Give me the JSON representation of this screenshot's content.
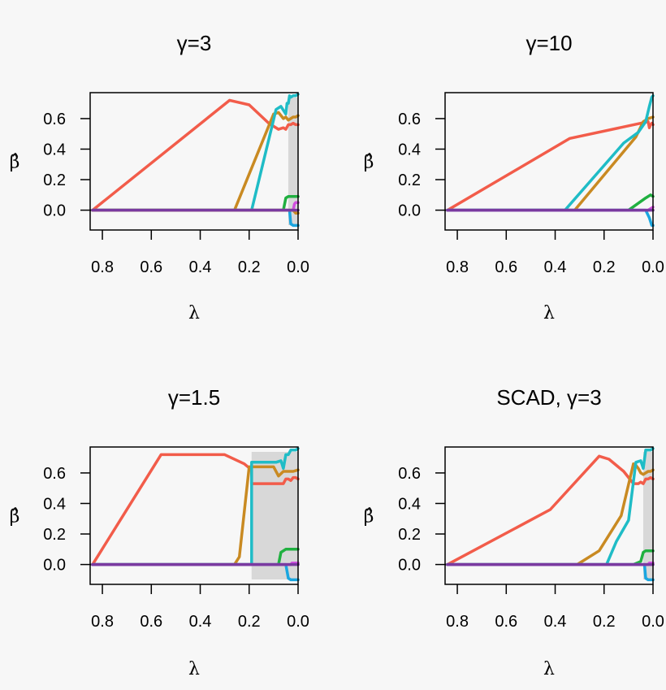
{
  "figure_background": "#f7f7f7",
  "colors": {
    "s1": "#f25c4a",
    "s2": "#c98a22",
    "s3": "#1fbcc6",
    "s4": "#20b040",
    "s5": "#1aa6e0",
    "s6": "#d24fe0",
    "s7": "#7a3aa0",
    "shade": "#d8d8d8",
    "zero_line": "#000000"
  },
  "chart_data": [
    {
      "type": "line",
      "title": "γ=3",
      "xlabel": "λ",
      "ylabel": "β̂",
      "xlim": [
        0.85,
        0.0
      ],
      "ylim": [
        -0.13,
        0.77
      ],
      "xticks": [
        "0.8",
        "0.6",
        "0.4",
        "0.2",
        "0.0"
      ],
      "yticks": [
        "0.0",
        "0.2",
        "0.4",
        "0.6"
      ],
      "grid": false,
      "shaded_region": [
        0.04,
        0.0
      ],
      "series": [
        {
          "color_key": "s1",
          "x": [
            0.84,
            0.28,
            0.2,
            0.12,
            0.08,
            0.06,
            0.05,
            0.04,
            0.03,
            0.02,
            0.01,
            0.0
          ],
          "y": [
            0.0,
            0.72,
            0.69,
            0.57,
            0.53,
            0.54,
            0.53,
            0.56,
            0.56,
            0.57,
            0.56,
            0.56
          ]
        },
        {
          "color_key": "s2",
          "x": [
            0.84,
            0.26,
            0.1,
            0.08,
            0.06,
            0.05,
            0.04,
            0.03,
            0.02,
            0.01,
            0.0
          ],
          "y": [
            0.0,
            0.0,
            0.63,
            0.64,
            0.6,
            0.61,
            0.59,
            0.6,
            0.61,
            0.61,
            0.62
          ]
        },
        {
          "color_key": "s3",
          "x": [
            0.84,
            0.19,
            0.09,
            0.07,
            0.05,
            0.045,
            0.04,
            0.035,
            0.03,
            0.02,
            0.01,
            0.0
          ],
          "y": [
            0.0,
            0.0,
            0.66,
            0.68,
            0.63,
            0.7,
            0.7,
            0.75,
            0.74,
            0.75,
            0.75,
            0.76
          ]
        },
        {
          "color_key": "s4",
          "x": [
            0.84,
            0.06,
            0.05,
            0.04,
            0.03,
            0.02,
            0.01,
            0.0
          ],
          "y": [
            0.0,
            0.0,
            0.08,
            0.09,
            0.09,
            0.09,
            0.09,
            0.09
          ]
        },
        {
          "color_key": "s5",
          "x": [
            0.84,
            0.035,
            0.03,
            0.02,
            0.01,
            0.0
          ],
          "y": [
            0.0,
            0.0,
            -0.09,
            -0.1,
            -0.1,
            -0.1
          ]
        },
        {
          "color_key": "s6",
          "x": [
            0.84,
            0.02,
            0.015,
            0.01,
            0.0
          ],
          "y": [
            0.0,
            0.0,
            0.04,
            0.05,
            0.05
          ]
        },
        {
          "color_key": "s2",
          "x": [
            0.84,
            0.02,
            0.01,
            0.0
          ],
          "y": [
            0.0,
            0.0,
            -0.02,
            -0.02
          ]
        },
        {
          "color_key": "s7",
          "x": [
            0.84,
            0.0
          ],
          "y": [
            0.0,
            0.0
          ]
        }
      ]
    },
    {
      "type": "line",
      "title": "γ=10",
      "xlabel": "λ",
      "ylabel": "β̂",
      "xlim": [
        0.85,
        0.0
      ],
      "ylim": [
        -0.13,
        0.77
      ],
      "xticks": [
        "0.8",
        "0.6",
        "0.4",
        "0.2",
        "0.0"
      ],
      "yticks": [
        "0.0",
        "0.2",
        "0.4",
        "0.6"
      ],
      "grid": false,
      "shaded_region": null,
      "series": [
        {
          "color_key": "s1",
          "x": [
            0.84,
            0.34,
            0.02,
            0.015,
            0.01,
            0.005,
            0.0
          ],
          "y": [
            0.0,
            0.47,
            0.58,
            0.54,
            0.56,
            0.57,
            0.56
          ]
        },
        {
          "color_key": "s2",
          "x": [
            0.84,
            0.32,
            0.07,
            0.04,
            0.02,
            0.0
          ],
          "y": [
            0.0,
            0.0,
            0.48,
            0.58,
            0.6,
            0.61
          ]
        },
        {
          "color_key": "s3",
          "x": [
            0.84,
            0.36,
            0.12,
            0.06,
            0.03,
            0.015,
            0.005,
            0.0
          ],
          "y": [
            0.0,
            0.0,
            0.44,
            0.51,
            0.58,
            0.68,
            0.74,
            0.75
          ]
        },
        {
          "color_key": "s4",
          "x": [
            0.84,
            0.1,
            0.03,
            0.01,
            0.0
          ],
          "y": [
            0.0,
            0.0,
            0.08,
            0.1,
            0.09
          ]
        },
        {
          "color_key": "s5",
          "x": [
            0.84,
            0.03,
            0.015,
            0.005,
            0.0
          ],
          "y": [
            0.0,
            0.0,
            -0.05,
            -0.1,
            -0.1
          ]
        },
        {
          "color_key": "s6",
          "x": [
            0.84,
            0.02,
            0.01,
            0.0
          ],
          "y": [
            0.0,
            0.0,
            0.01,
            0.02
          ]
        },
        {
          "color_key": "s7",
          "x": [
            0.84,
            0.0
          ],
          "y": [
            0.0,
            0.0
          ]
        }
      ]
    },
    {
      "type": "line",
      "title": "γ=1.5",
      "xlabel": "λ",
      "ylabel": "β̂",
      "xlim": [
        0.85,
        0.0
      ],
      "ylim": [
        -0.13,
        0.77
      ],
      "xticks": [
        "0.8",
        "0.6",
        "0.4",
        "0.2",
        "0.0"
      ],
      "yticks": [
        "0.0",
        "0.2",
        "0.4",
        "0.6"
      ],
      "grid": false,
      "shaded_region": [
        0.19,
        0.0
      ],
      "series": [
        {
          "color_key": "s1",
          "x": [
            0.84,
            0.56,
            0.3,
            0.22,
            0.19,
            0.19,
            0.1,
            0.06,
            0.05,
            0.04,
            0.03,
            0.02,
            0.01,
            0.0
          ],
          "y": [
            0.0,
            0.72,
            0.72,
            0.66,
            0.62,
            0.53,
            0.53,
            0.53,
            0.56,
            0.56,
            0.55,
            0.57,
            0.57,
            0.56
          ]
        },
        {
          "color_key": "s2",
          "x": [
            0.84,
            0.26,
            0.24,
            0.2,
            0.1,
            0.08,
            0.06,
            0.04,
            0.02,
            0.0
          ],
          "y": [
            0.0,
            0.0,
            0.05,
            0.64,
            0.64,
            0.58,
            0.61,
            0.61,
            0.61,
            0.62
          ]
        },
        {
          "color_key": "s3",
          "x": [
            0.84,
            0.19,
            0.19,
            0.09,
            0.07,
            0.06,
            0.05,
            0.04,
            0.03,
            0.02,
            0.01,
            0.0
          ],
          "y": [
            0.0,
            0.0,
            0.67,
            0.67,
            0.68,
            0.63,
            0.72,
            0.72,
            0.75,
            0.75,
            0.75,
            0.76
          ]
        },
        {
          "color_key": "s4",
          "x": [
            0.84,
            0.08,
            0.07,
            0.05,
            0.02,
            0.0
          ],
          "y": [
            0.0,
            0.0,
            0.08,
            0.1,
            0.1,
            0.1
          ]
        },
        {
          "color_key": "s5",
          "x": [
            0.84,
            0.05,
            0.04,
            0.03,
            0.01,
            0.0
          ],
          "y": [
            0.0,
            0.0,
            -0.09,
            -0.1,
            -0.1,
            -0.1
          ]
        },
        {
          "color_key": "s6",
          "x": [
            0.84,
            0.03,
            0.025,
            0.0
          ],
          "y": [
            0.0,
            0.0,
            0.01,
            0.01
          ]
        },
        {
          "color_key": "s7",
          "x": [
            0.84,
            0.0
          ],
          "y": [
            0.0,
            0.0
          ]
        }
      ]
    },
    {
      "type": "line",
      "title": "SCAD, γ=3",
      "xlabel": "λ",
      "ylabel": "β̂",
      "xlim": [
        0.85,
        0.0
      ],
      "ylim": [
        -0.13,
        0.77
      ],
      "xticks": [
        "0.8",
        "0.6",
        "0.4",
        "0.2",
        "0.0"
      ],
      "yticks": [
        "0.0",
        "0.2",
        "0.4",
        "0.6"
      ],
      "grid": false,
      "shaded_region": [
        0.04,
        0.0
      ],
      "series": [
        {
          "color_key": "s1",
          "x": [
            0.84,
            0.42,
            0.22,
            0.18,
            0.12,
            0.08,
            0.06,
            0.05,
            0.04,
            0.03,
            0.02,
            0.01,
            0.0
          ],
          "y": [
            0.0,
            0.36,
            0.71,
            0.69,
            0.61,
            0.53,
            0.53,
            0.54,
            0.53,
            0.56,
            0.56,
            0.57,
            0.56
          ]
        },
        {
          "color_key": "s2",
          "x": [
            0.84,
            0.31,
            0.22,
            0.13,
            0.08,
            0.07,
            0.06,
            0.05,
            0.04,
            0.03,
            0.02,
            0.01,
            0.0
          ],
          "y": [
            0.0,
            0.0,
            0.09,
            0.32,
            0.66,
            0.65,
            0.63,
            0.6,
            0.59,
            0.6,
            0.61,
            0.61,
            0.62
          ]
        },
        {
          "color_key": "s3",
          "x": [
            0.84,
            0.19,
            0.15,
            0.1,
            0.07,
            0.05,
            0.04,
            0.03,
            0.02,
            0.01,
            0.0
          ],
          "y": [
            0.0,
            0.0,
            0.15,
            0.29,
            0.67,
            0.68,
            0.63,
            0.75,
            0.75,
            0.75,
            0.76
          ]
        },
        {
          "color_key": "s4",
          "x": [
            0.84,
            0.08,
            0.05,
            0.04,
            0.03,
            0.02,
            0.01,
            0.0
          ],
          "y": [
            0.0,
            0.0,
            0.02,
            0.08,
            0.09,
            0.09,
            0.09,
            0.09
          ]
        },
        {
          "color_key": "s5",
          "x": [
            0.84,
            0.035,
            0.03,
            0.02,
            0.01,
            0.0
          ],
          "y": [
            0.0,
            0.0,
            -0.09,
            -0.1,
            -0.1,
            -0.1
          ]
        },
        {
          "color_key": "s6",
          "x": [
            0.84,
            0.02,
            0.015,
            0.0
          ],
          "y": [
            0.0,
            0.0,
            0.01,
            0.01
          ]
        },
        {
          "color_key": "s7",
          "x": [
            0.84,
            0.0
          ],
          "y": [
            0.0,
            0.0
          ]
        }
      ]
    }
  ]
}
